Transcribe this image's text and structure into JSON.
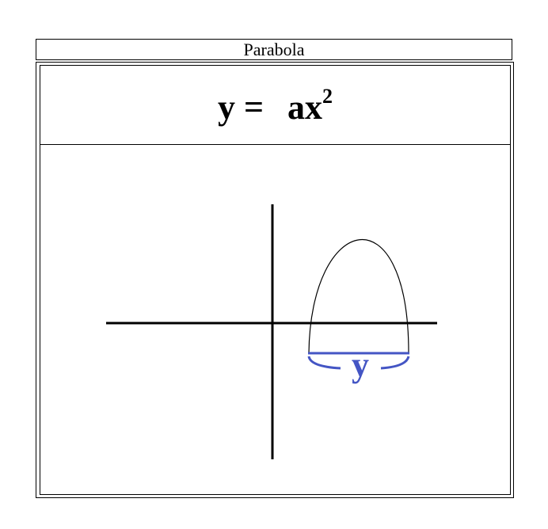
{
  "title": "Parabola",
  "equation": {
    "lhs": "y =",
    "rhs": "ax",
    "exponent": "2"
  },
  "diagram": {
    "label": "y",
    "colors": {
      "axes": "#000000",
      "curve": "#000000",
      "measure": "#4455c4"
    }
  }
}
